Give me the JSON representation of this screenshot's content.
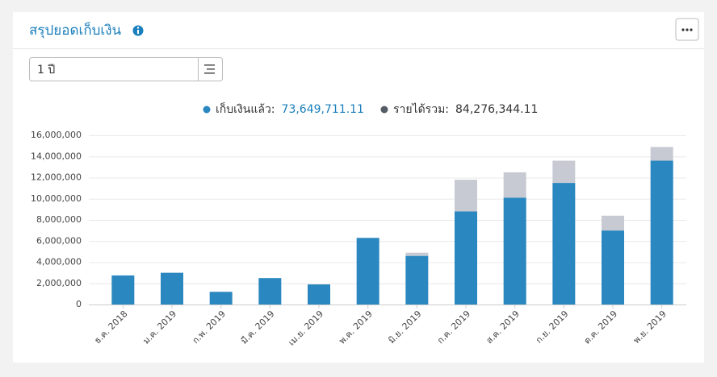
{
  "header": {
    "title": "สรุปยอดเก็บเงิน"
  },
  "filter": {
    "period": "1 ปี"
  },
  "chart_data": {
    "type": "stacked-bar",
    "categories": [
      "ธ.ค. 2018",
      "ม.ค. 2019",
      "ก.พ. 2019",
      "มี.ค. 2019",
      "เม.ย. 2019",
      "พ.ค. 2019",
      "มิ.ย. 2019",
      "ก.ค. 2019",
      "ส.ค. 2019",
      "ก.ย. 2019",
      "ต.ค. 2019",
      "พ.ย. 2019"
    ],
    "series": [
      {
        "name": "เก็บเงินแล้ว:",
        "total": "73,649,711.11",
        "color": "#2a87bf",
        "values": [
          2750000,
          3000000,
          1200000,
          2500000,
          1900000,
          6300000,
          4600000,
          8800000,
          10100000,
          11500000,
          7000000,
          13600000
        ]
      },
      {
        "name": "รายได้รวม:",
        "total": "84,276,344.11",
        "color": "#c8cad3",
        "values": [
          0,
          0,
          0,
          0,
          0,
          0,
          300000,
          3000000,
          2400000,
          2100000,
          1400000,
          1300000
        ]
      }
    ],
    "ylim": [
      0,
      16000000
    ],
    "yticks": [
      0,
      {
        "value": 2000000,
        "label": "2,000,000"
      },
      {
        "value": 4000000,
        "label": "4,000,000"
      },
      {
        "value": 6000000,
        "label": "6,000,000"
      },
      {
        "value": 8000000,
        "label": "8,000,000"
      },
      {
        "value": 10000000,
        "label": "10,000,000"
      },
      {
        "value": 12000000,
        "label": "12,000,000"
      },
      {
        "value": 14000000,
        "label": "14,000,000"
      },
      {
        "value": 16000000,
        "label": "16,000,000"
      }
    ],
    "grid": true
  }
}
